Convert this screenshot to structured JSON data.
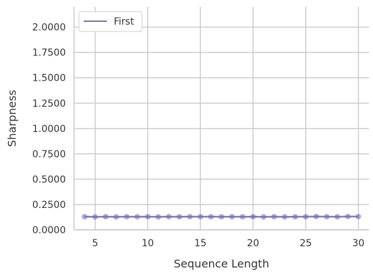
{
  "chart_data": {
    "type": "line",
    "xlabel": "Sequence Length",
    "ylabel": "Sharpness",
    "xlim": [
      3.0,
      31.0
    ],
    "ylim": [
      0.0,
      2.2
    ],
    "x_ticks": [
      5,
      10,
      15,
      20,
      25,
      30
    ],
    "x_tick_labels": [
      "5",
      "10",
      "15",
      "20",
      "25",
      "30"
    ],
    "y_ticks": [
      0.0,
      0.25,
      0.5,
      0.75,
      1.0,
      1.25,
      1.5,
      1.75,
      2.0
    ],
    "y_tick_labels": [
      "0.0000",
      "0.2500",
      "0.5000",
      "0.7500",
      "1.0000",
      "1.2500",
      "1.5000",
      "1.7500",
      "2.0000"
    ],
    "grid": true,
    "legend_position": "top-left",
    "series": [
      {
        "name": "First",
        "color": "#7570b3",
        "x": [
          4,
          5,
          6,
          7,
          8,
          9,
          10,
          11,
          12,
          13,
          14,
          15,
          16,
          17,
          18,
          19,
          20,
          21,
          22,
          23,
          24,
          25,
          26,
          27,
          28,
          29,
          30
        ],
        "y": [
          0.13,
          0.128,
          0.13,
          0.128,
          0.13,
          0.129,
          0.13,
          0.128,
          0.13,
          0.129,
          0.13,
          0.13,
          0.13,
          0.129,
          0.13,
          0.129,
          0.13,
          0.128,
          0.13,
          0.128,
          0.129,
          0.13,
          0.132,
          0.13,
          0.129,
          0.132,
          0.131
        ]
      }
    ]
  }
}
